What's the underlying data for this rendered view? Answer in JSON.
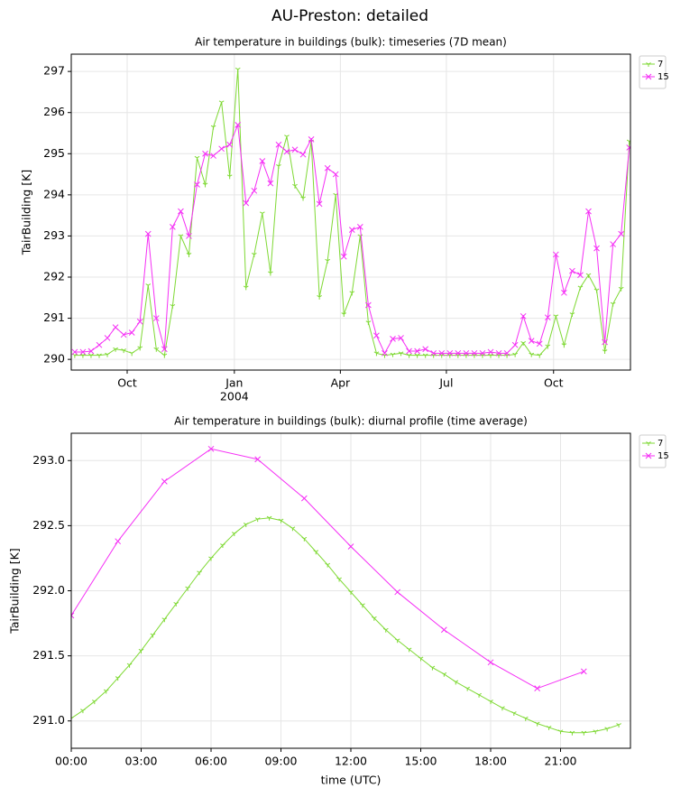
{
  "title": "AU-Preston: detailed",
  "chart_data": [
    {
      "type": "line",
      "title": "Air temperature in buildings (bulk): timeseries (7D mean)",
      "ylabel": "TairBuilding [K]",
      "x": [
        "2003-08-17",
        "2003-08-24",
        "2003-08-31",
        "2003-09-07",
        "2003-09-14",
        "2003-09-21",
        "2003-09-28",
        "2003-10-05",
        "2003-10-12",
        "2003-10-19",
        "2003-10-26",
        "2003-11-02",
        "2003-11-09",
        "2003-11-16",
        "2003-11-23",
        "2003-11-30",
        "2003-12-07",
        "2003-12-14",
        "2003-12-21",
        "2003-12-28",
        "2004-01-04",
        "2004-01-11",
        "2004-01-18",
        "2004-01-25",
        "2004-02-01",
        "2004-02-08",
        "2004-02-15",
        "2004-02-22",
        "2004-02-29",
        "2004-03-07",
        "2004-03-14",
        "2004-03-21",
        "2004-03-28",
        "2004-04-04",
        "2004-04-11",
        "2004-04-18",
        "2004-04-25",
        "2004-05-02",
        "2004-05-09",
        "2004-05-16",
        "2004-05-23",
        "2004-05-30",
        "2004-06-06",
        "2004-06-13",
        "2004-06-20",
        "2004-06-27",
        "2004-07-04",
        "2004-07-11",
        "2004-07-18",
        "2004-07-25",
        "2004-08-01",
        "2004-08-08",
        "2004-08-15",
        "2004-08-22",
        "2004-08-29",
        "2004-09-05",
        "2004-09-12",
        "2004-09-19",
        "2004-09-26",
        "2004-10-03",
        "2004-10-10",
        "2004-10-17",
        "2004-10-24",
        "2004-10-31",
        "2004-11-07",
        "2004-11-14",
        "2004-11-21",
        "2004-11-28",
        "2004-12-05"
      ],
      "series": [
        {
          "name": "7",
          "color": "#7fd934",
          "marker": "tri_down",
          "values": [
            290.1,
            290.1,
            290.1,
            290.1,
            290.12,
            290.25,
            290.22,
            290.15,
            290.28,
            291.8,
            290.25,
            290.1,
            291.3,
            293.0,
            292.55,
            294.9,
            294.25,
            295.65,
            296.25,
            294.45,
            297.05,
            291.75,
            292.55,
            293.55,
            292.1,
            294.7,
            295.42,
            294.22,
            293.92,
            295.3,
            291.52,
            292.4,
            294.0,
            291.1,
            291.62,
            293.0,
            290.9,
            290.15,
            290.1,
            290.12,
            290.15,
            290.1,
            290.1,
            290.1,
            290.1,
            290.1,
            290.1,
            290.1,
            290.1,
            290.1,
            290.1,
            290.1,
            290.1,
            290.1,
            290.12,
            290.4,
            290.12,
            290.1,
            290.32,
            291.05,
            290.35,
            291.1,
            291.75,
            292.05,
            291.68,
            290.2,
            291.35,
            291.72,
            295.3
          ]
        },
        {
          "name": "15",
          "color": "#f52ff5",
          "marker": "x",
          "values": [
            290.18,
            290.18,
            290.2,
            290.35,
            290.52,
            290.78,
            290.6,
            290.65,
            290.92,
            293.05,
            291.0,
            290.25,
            293.22,
            293.6,
            293.0,
            294.25,
            295.0,
            294.95,
            295.12,
            295.22,
            295.7,
            293.8,
            294.1,
            294.82,
            294.28,
            295.22,
            295.05,
            295.1,
            294.98,
            295.35,
            293.78,
            294.65,
            294.5,
            292.5,
            293.15,
            293.22,
            291.32,
            290.58,
            290.15,
            290.5,
            290.52,
            290.2,
            290.2,
            290.25,
            290.15,
            290.15,
            290.15,
            290.15,
            290.15,
            290.15,
            290.15,
            290.18,
            290.15,
            290.15,
            290.35,
            291.05,
            290.45,
            290.38,
            291.02,
            292.55,
            291.62,
            292.15,
            292.05,
            293.6,
            292.7,
            290.42,
            292.8,
            293.05,
            295.15
          ]
        }
      ],
      "xlim": [
        "2003-08-14",
        "2004-12-06"
      ],
      "xticks": [
        {
          "value": "2003-10-01",
          "label": "Oct"
        },
        {
          "value": "2004-01-01",
          "label": "Jan",
          "sublabel": "2004"
        },
        {
          "value": "2004-04-01",
          "label": "Apr"
        },
        {
          "value": "2004-07-01",
          "label": "Jul"
        },
        {
          "value": "2004-10-01",
          "label": "Oct"
        }
      ],
      "ylim": [
        289.74,
        297.42
      ],
      "yticks": [
        290,
        291,
        292,
        293,
        294,
        295,
        296,
        297
      ],
      "grid": true,
      "legend": "upper right outside"
    },
    {
      "type": "line",
      "title": "Air temperature in buildings (bulk): diurnal profile (time average)",
      "xlabel": "time (UTC)",
      "ylabel": "TairBuilding [K]",
      "series": [
        {
          "name": "7",
          "color": "#7fd934",
          "marker": "tri_down",
          "x": [
            0,
            0.5,
            1,
            1.5,
            2,
            2.5,
            3,
            3.5,
            4,
            4.5,
            5,
            5.5,
            6,
            6.5,
            7,
            7.5,
            8,
            8.5,
            9,
            9.5,
            10,
            10.5,
            11,
            11.5,
            12,
            12.5,
            13,
            13.5,
            14,
            14.5,
            15,
            15.5,
            16,
            16.5,
            17,
            17.5,
            18,
            18.5,
            19,
            19.5,
            20,
            20.5,
            21,
            21.5,
            22,
            22.5,
            23,
            23.5
          ],
          "values": [
            291.02,
            291.08,
            291.15,
            291.23,
            291.33,
            291.43,
            291.54,
            291.66,
            291.78,
            291.9,
            292.02,
            292.14,
            292.25,
            292.35,
            292.44,
            292.51,
            292.55,
            292.56,
            292.54,
            292.48,
            292.4,
            292.3,
            292.2,
            292.09,
            291.99,
            291.89,
            291.79,
            291.7,
            291.62,
            291.55,
            291.48,
            291.41,
            291.36,
            291.3,
            291.25,
            291.2,
            291.15,
            291.1,
            291.06,
            291.02,
            290.98,
            290.95,
            290.92,
            290.91,
            290.91,
            290.92,
            290.94,
            290.97
          ]
        },
        {
          "name": "15",
          "color": "#f52ff5",
          "marker": "x",
          "x": [
            0,
            2,
            4,
            6,
            8,
            10,
            12,
            14,
            16,
            18,
            20,
            22
          ],
          "values": [
            291.81,
            292.38,
            292.84,
            293.09,
            293.01,
            292.71,
            292.34,
            291.99,
            291.7,
            291.45,
            291.25,
            291.38
          ]
        }
      ],
      "xlim": [
        0,
        24
      ],
      "xticks": [
        {
          "value": 0,
          "label": "00:00"
        },
        {
          "value": 3,
          "label": "03:00"
        },
        {
          "value": 6,
          "label": "06:00"
        },
        {
          "value": 9,
          "label": "09:00"
        },
        {
          "value": 12,
          "label": "12:00"
        },
        {
          "value": 15,
          "label": "15:00"
        },
        {
          "value": 18,
          "label": "18:00"
        },
        {
          "value": 21,
          "label": "21:00"
        }
      ],
      "ylim": [
        290.79,
        293.21
      ],
      "yticks": [
        {
          "value": 291,
          "label": "291.0"
        },
        291.5,
        {
          "value": 292,
          "label": "292.0"
        },
        292.5,
        {
          "value": 293,
          "label": "293.0"
        }
      ],
      "grid": true,
      "legend": "upper right outside"
    }
  ]
}
